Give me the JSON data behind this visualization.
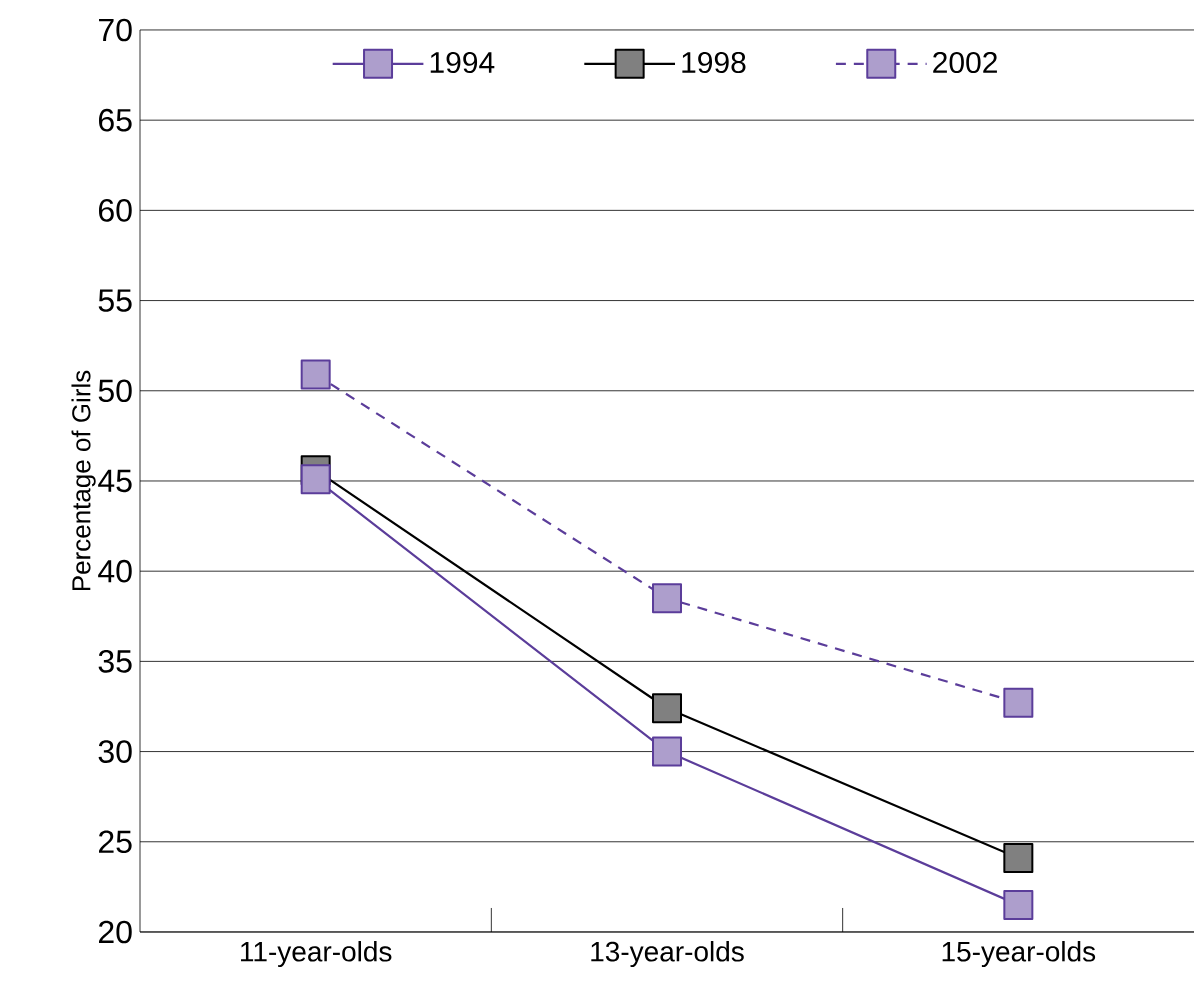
{
  "chart_data": {
    "type": "line",
    "ylabel": "Percentage of Girls",
    "categories": [
      "11-year-olds",
      "13-year-olds",
      "15-year-olds"
    ],
    "series": [
      {
        "name": "1994",
        "color": "#5b3d9a",
        "values": [
          45.1,
          30.0,
          21.5
        ]
      },
      {
        "name": "1998",
        "color": "#000000",
        "values": [
          45.6,
          32.4,
          24.1
        ]
      },
      {
        "name": "2002",
        "color": "#5b3d9a",
        "values": [
          50.9,
          38.5,
          32.7
        ],
        "line_style": "dashed"
      }
    ],
    "ylim": [
      20,
      70
    ],
    "yticks": [
      20,
      25,
      30,
      35,
      40,
      45,
      50,
      55,
      60,
      65,
      70
    ],
    "grid": "y",
    "legend": "top",
    "marker": "square"
  }
}
